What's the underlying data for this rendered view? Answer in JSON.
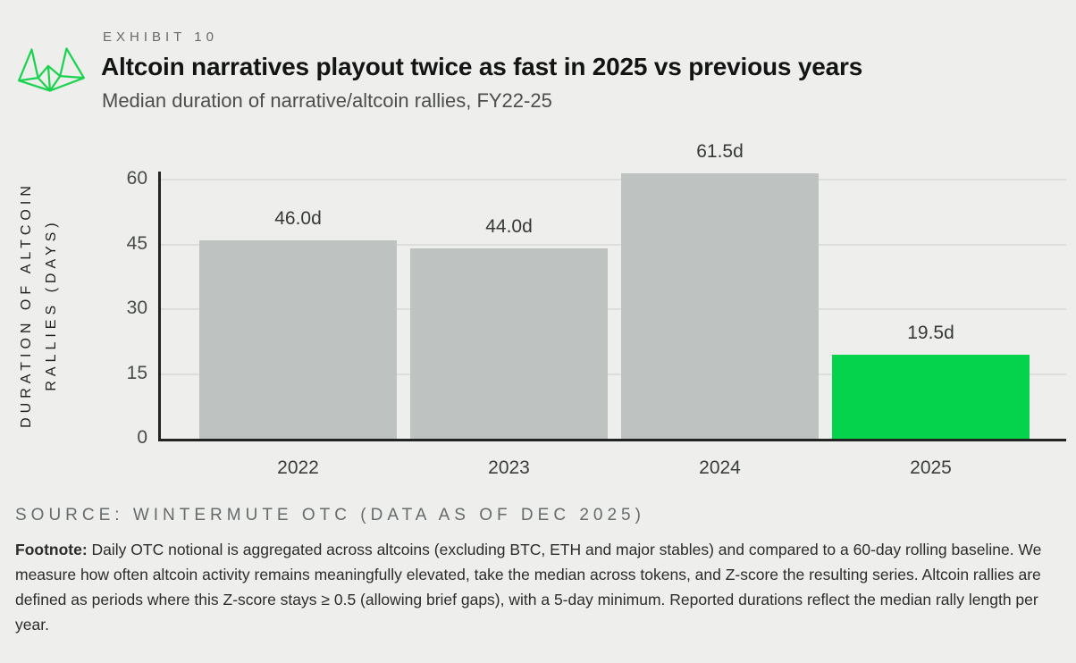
{
  "header": {
    "exhibit_label": "EXHIBIT 10",
    "title": "Altcoin narratives playout twice as fast in 2025 vs previous years",
    "subtitle": "Median duration of narrative/altcoin rallies, FY22-25",
    "logo_name": "wintermute-logo"
  },
  "chart_data": {
    "type": "bar",
    "categories": [
      "2022",
      "2023",
      "2024",
      "2025"
    ],
    "values": [
      46.0,
      44.0,
      61.5,
      19.5
    ],
    "bar_labels": [
      "46.0d",
      "44.0d",
      "61.5d",
      "19.5d"
    ],
    "title": "Median duration of narrative/altcoin rallies, FY22-25",
    "ylabel_line1": "DURATION OF ALTCOIN",
    "ylabel_line2": "RALLIES (DAYS)",
    "xlabel": "",
    "yticks": [
      0,
      15,
      30,
      45,
      60
    ],
    "ylim": [
      0,
      62.5
    ],
    "grid": "horizontal",
    "legend": "none",
    "bar_colors": [
      "#bec2c0",
      "#bec2c0",
      "#bec2c0",
      "#06d34c"
    ]
  },
  "colors": {
    "background": "#eeeeec",
    "bar_default": "#bec2c0",
    "bar_highlight": "#06d34c",
    "axis": "#212423",
    "gridline": "#dddddb",
    "logo_green": "#1bd34e"
  },
  "source_line": "SOURCE: WINTERMUTE OTC (DATA AS OF DEC 2025)",
  "footnote": {
    "label": "Footnote:",
    "text": " Daily OTC notional is aggregated across altcoins (excluding BTC, ETH and major stables) and compared to a 60-day rolling baseline. We measure how often altcoin activity remains meaningfully elevated, take the median across tokens, and Z-score the resulting series. Altcoin rallies are defined as periods where this Z-score stays ≥ 0.5 (allowing brief gaps), with a 5-day minimum. Reported durations reflect the median rally length per year."
  }
}
